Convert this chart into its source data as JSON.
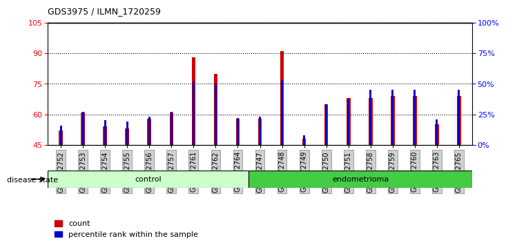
{
  "title": "GDS3975 / ILMN_1720259",
  "samples": [
    "GSM572752",
    "GSM572753",
    "GSM572754",
    "GSM572755",
    "GSM572756",
    "GSM572757",
    "GSM572761",
    "GSM572762",
    "GSM572764",
    "GSM572747",
    "GSM572748",
    "GSM572749",
    "GSM572750",
    "GSM572751",
    "GSM572758",
    "GSM572759",
    "GSM572760",
    "GSM572763",
    "GSM572765"
  ],
  "count_values": [
    52,
    61,
    54,
    53,
    58,
    61,
    88,
    80,
    58,
    58,
    91,
    48,
    65,
    68,
    68,
    69,
    69,
    55,
    69
  ],
  "percentile_values": [
    16,
    27,
    20,
    19,
    23,
    27,
    52,
    50,
    22,
    23,
    53,
    8,
    33,
    37,
    45,
    45,
    45,
    21,
    45
  ],
  "groups": [
    "control",
    "control",
    "control",
    "control",
    "control",
    "control",
    "control",
    "control",
    "control",
    "endometrioma",
    "endometrioma",
    "endometrioma",
    "endometrioma",
    "endometrioma",
    "endometrioma",
    "endometrioma",
    "endometrioma",
    "endometrioma",
    "endometrioma"
  ],
  "n_control": 9,
  "n_endometrioma": 10,
  "ylim_left": [
    45,
    105
  ],
  "ylim_right": [
    0,
    100
  ],
  "yticks_left": [
    45,
    60,
    75,
    90,
    105
  ],
  "yticks_right": [
    0,
    25,
    50,
    75,
    100
  ],
  "ytick_labels_right": [
    "0%",
    "25%",
    "50%",
    "75%",
    "100%"
  ],
  "bar_color": "#cc0000",
  "percentile_color": "#0000cc",
  "control_color": "#ccffcc",
  "endometrioma_color": "#44cc44",
  "background_color": "#d0d0d0",
  "plot_bg_color": "#ffffff",
  "bar_width": 0.18,
  "pct_bar_width": 0.1,
  "label_count": "count",
  "label_percentile": "percentile rank within the sample",
  "disease_state_label": "disease state",
  "control_label": "control",
  "endometrioma_label": "endometrioma"
}
